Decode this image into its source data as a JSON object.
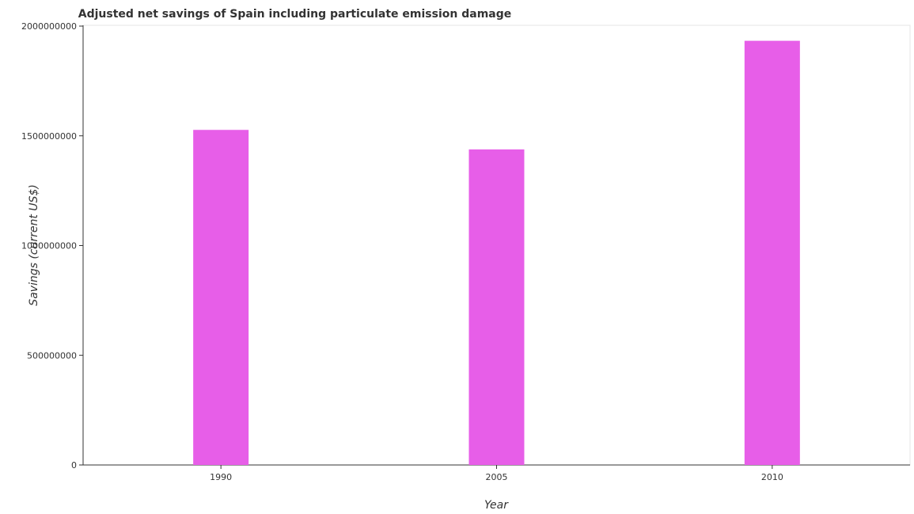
{
  "chart_data": {
    "type": "bar",
    "title": "Adjusted net savings of Spain including particulate emission damage",
    "xlabel": "Year",
    "ylabel": "Savings (current US$)",
    "categories": [
      "1990",
      "2005",
      "2010"
    ],
    "values": [
      1527000000,
      1438000000,
      1933000000
    ],
    "ylim": [
      0,
      2000000000
    ],
    "yticks": [
      0,
      500000000,
      1000000000,
      1500000000,
      2000000000
    ],
    "ytick_labels": [
      "0",
      "500000000",
      "1000000000",
      "1500000000",
      "2000000000"
    ],
    "bar_color": "#e75ee8",
    "grid": false,
    "legend": "none"
  }
}
